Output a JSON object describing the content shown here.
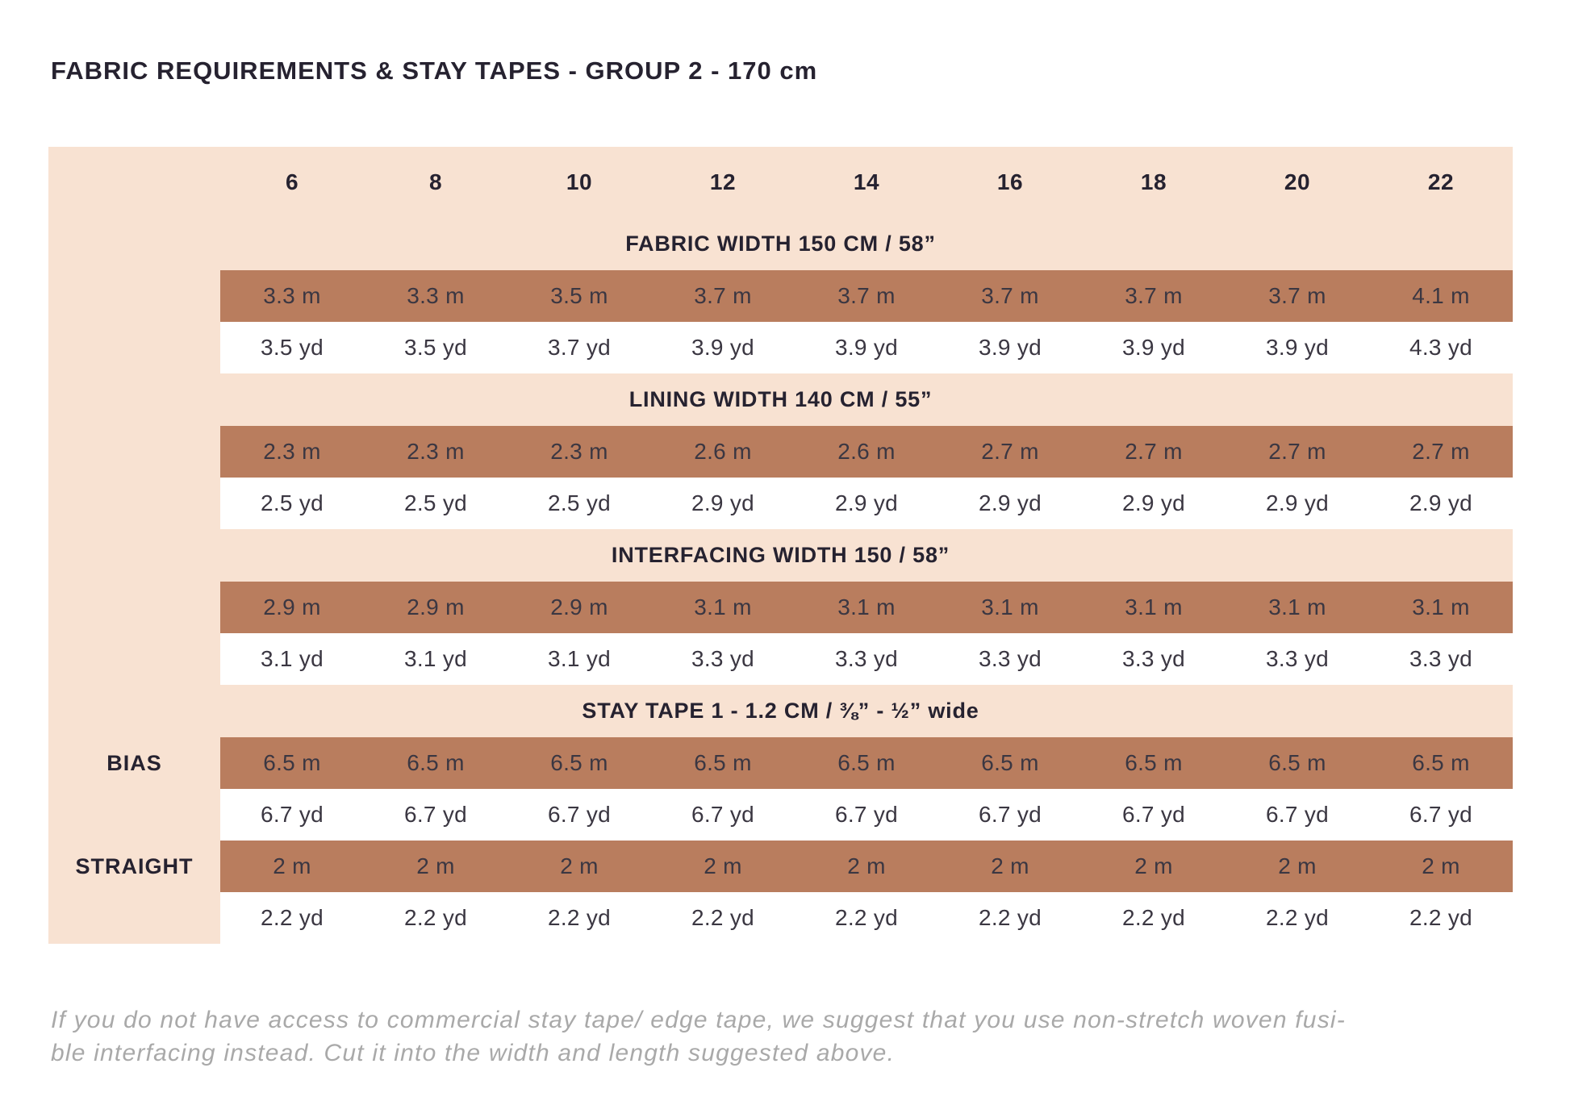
{
  "title": "FABRIC REQUIREMENTS & STAY TAPES - GROUP 2 - 170 cm",
  "sizes": [
    "6",
    "8",
    "10",
    "12",
    "14",
    "16",
    "18",
    "20",
    "22"
  ],
  "sections": [
    {
      "header": "FABRIC WIDTH 150 CM / 58”",
      "rows": [
        {
          "label": "",
          "unit": "m",
          "values": [
            "3.3 m",
            "3.3 m",
            "3.5 m",
            "3.7 m",
            "3.7 m",
            "3.7 m",
            "3.7 m",
            "3.7 m",
            "4.1 m"
          ]
        },
        {
          "label": "",
          "unit": "yd",
          "values": [
            "3.5 yd",
            "3.5 yd",
            "3.7 yd",
            "3.9 yd",
            "3.9 yd",
            "3.9 yd",
            "3.9 yd",
            "3.9 yd",
            "4.3 yd"
          ]
        }
      ]
    },
    {
      "header": "LINING WIDTH 140 CM / 55”",
      "rows": [
        {
          "label": "",
          "unit": "m",
          "values": [
            "2.3 m",
            "2.3 m",
            "2.3 m",
            "2.6 m",
            "2.6 m",
            "2.7 m",
            "2.7 m",
            "2.7 m",
            "2.7 m"
          ]
        },
        {
          "label": "",
          "unit": "yd",
          "values": [
            "2.5 yd",
            "2.5 yd",
            "2.5 yd",
            "2.9 yd",
            "2.9 yd",
            "2.9 yd",
            "2.9 yd",
            "2.9 yd",
            "2.9 yd"
          ]
        }
      ]
    },
    {
      "header": "INTERFACING WIDTH 150 / 58”",
      "rows": [
        {
          "label": "",
          "unit": "m",
          "values": [
            "2.9 m",
            "2.9 m",
            "2.9 m",
            "3.1 m",
            "3.1 m",
            "3.1 m",
            "3.1 m",
            "3.1 m",
            "3.1 m"
          ]
        },
        {
          "label": "",
          "unit": "yd",
          "values": [
            "3.1 yd",
            "3.1 yd",
            "3.1 yd",
            "3.3 yd",
            "3.3 yd",
            "3.3 yd",
            "3.3 yd",
            "3.3 yd",
            "3.3 yd"
          ]
        }
      ]
    },
    {
      "header": "STAY TAPE 1 - 1.2 CM / ⅜” - ½” wide",
      "rows": [
        {
          "label": "BIAS",
          "unit": "m",
          "values": [
            "6.5 m",
            "6.5 m",
            "6.5 m",
            "6.5 m",
            "6.5 m",
            "6.5 m",
            "6.5 m",
            "6.5 m",
            "6.5 m"
          ]
        },
        {
          "label": "",
          "unit": "yd",
          "values": [
            "6.7 yd",
            "6.7 yd",
            "6.7 yd",
            "6.7 yd",
            "6.7 yd",
            "6.7 yd",
            "6.7 yd",
            "6.7 yd",
            "6.7 yd"
          ]
        },
        {
          "label": "STRAIGHT",
          "unit": "m",
          "values": [
            "2 m",
            "2 m",
            "2 m",
            "2 m",
            "2 m",
            "2 m",
            "2 m",
            "2 m",
            "2 m"
          ]
        },
        {
          "label": "",
          "unit": "yd",
          "values": [
            "2.2 yd",
            "2.2 yd",
            "2.2 yd",
            "2.2 yd",
            "2.2 yd",
            "2.2 yd",
            "2.2 yd",
            "2.2 yd",
            "2.2 yd"
          ]
        }
      ]
    }
  ],
  "footer": {
    "line1": "If you do not have access to commercial stay tape/ edge tape, we suggest that you use non-stretch woven fusi-",
    "line2": "ble interfacing instead. Cut it into the width and length suggested above."
  },
  "colors": {
    "table_background": "#f8e2d2",
    "meter_row_brown": "#b97d5e",
    "yard_row_white": "#ffffff",
    "heading_text": "#262230",
    "value_text": "#3b3742",
    "footnote_gray": "#a9a9a9"
  }
}
